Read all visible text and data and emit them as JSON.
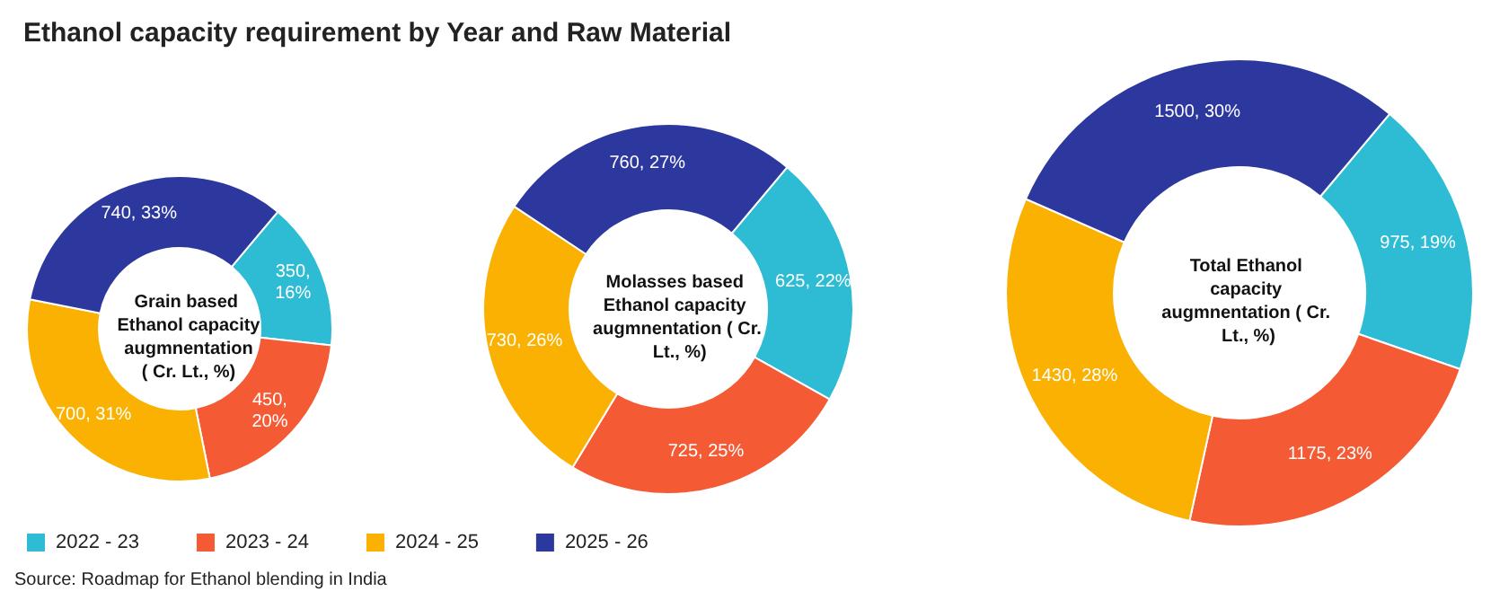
{
  "chart_data": {
    "type": "donut",
    "title": "Ethanol capacity requirement by Year and Raw Material",
    "categories": [
      "2022 - 23",
      "2023 - 24",
      "2024 - 25",
      "2025 - 26"
    ],
    "colors": [
      "#2ebcd4",
      "#f45a34",
      "#fbb102",
      "#2d389f"
    ],
    "legend": "bottom left",
    "annotations": [
      "Source: Roadmap for Ethanol blending in India"
    ],
    "series": [
      {
        "name": "Grain based Ethanol capacity augmnentation ( Cr. Lt., %)",
        "values": [
          350,
          450,
          700,
          740
        ],
        "value_labels": [
          "350,\n16%",
          "450,\n20%",
          "700, 31%",
          "740, 33%"
        ]
      },
      {
        "name": "Molasses based Ethanol capacity augmnentation ( Cr. Lt., %)",
        "values": [
          625,
          725,
          730,
          760
        ],
        "value_labels": [
          "625, 22%",
          "725, 25%",
          "730, 26%",
          "760, 27%"
        ]
      },
      {
        "name": "Total Ethanol capacity augmnentation ( Cr. Lt., %)",
        "values": [
          975,
          1175,
          1430,
          1500
        ],
        "value_labels": [
          "975, 19%",
          "1175, 23%",
          "1430, 28%",
          "1500, 30%"
        ]
      }
    ]
  }
}
